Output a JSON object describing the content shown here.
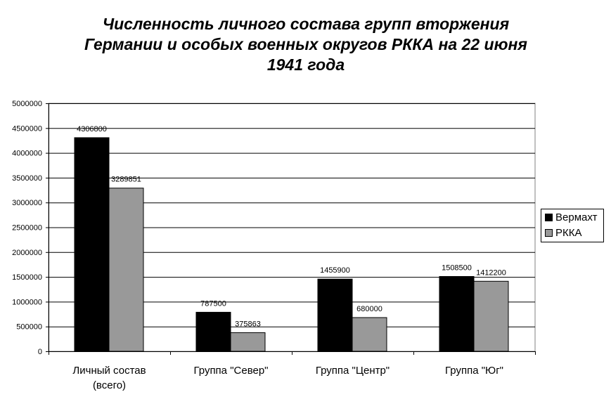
{
  "chart_data": {
    "type": "bar",
    "title_lines": [
      "Численность личного состава групп вторжения",
      "Германии и особых военных округов РККА  на 22 июня",
      "1941 года"
    ],
    "categories": [
      [
        "Личный состав",
        "(всего)"
      ],
      [
        "Группа \"Север\""
      ],
      [
        "Группа \"Центр\""
      ],
      [
        "Группа \"Юг\""
      ]
    ],
    "series": [
      {
        "name": "Вермахт",
        "color": "#000000",
        "values": [
          4306800,
          787500,
          1455900,
          1508500
        ]
      },
      {
        "name": "РККА",
        "color": "#999999",
        "values": [
          3289851,
          375863,
          680000,
          1412200
        ]
      }
    ],
    "ylim": [
      0,
      5000000
    ],
    "yticks": [
      0,
      500000,
      1000000,
      1500000,
      2000000,
      2500000,
      3000000,
      3500000,
      4000000,
      4500000,
      5000000
    ],
    "grid": true,
    "legend_position": "right"
  }
}
